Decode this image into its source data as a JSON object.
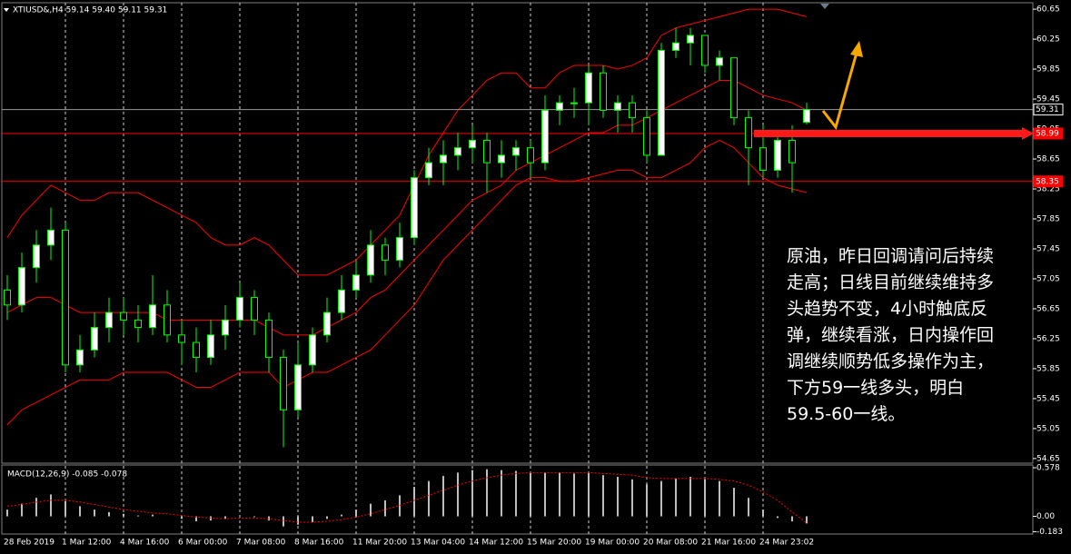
{
  "chart_data": [
    {
      "type": "candlestick",
      "title": "XTIUSD&,H4 59.14 59.40 59.11 59.31",
      "categories": [
        "28 Feb 2019",
        null,
        null,
        null,
        "1 Mar 12:00",
        null,
        null,
        null,
        "4 Mar 16:00",
        null,
        null,
        null,
        "6 Mar 00:00",
        null,
        null,
        null,
        "7 Mar 08:00",
        null,
        null,
        null,
        "8 Mar 16:00",
        null,
        null,
        null,
        "11 Mar 20:00",
        null,
        null,
        null,
        "13 Mar 04:00",
        null,
        null,
        null,
        "14 Mar 12:00",
        null,
        null,
        null,
        "15 Mar 20:00",
        null,
        null,
        null,
        "19 Mar 00:00",
        null,
        null,
        null,
        "20 Mar 08:00",
        null,
        null,
        null,
        "21 Mar 16:00",
        null,
        null,
        null,
        "24 Mar 23:02",
        null,
        null,
        null
      ],
      "open": [
        56.9,
        56.7,
        57.2,
        57.5,
        57.7,
        55.9,
        56.1,
        56.4,
        56.6,
        56.5,
        56.4,
        56.7,
        56.3,
        56.2,
        56.0,
        56.3,
        56.5,
        56.8,
        56.5,
        56.0,
        55.3,
        55.9,
        56.3,
        56.6,
        56.9,
        57.1,
        57.5,
        57.3,
        57.6,
        58.4,
        58.6,
        58.7,
        58.8,
        58.9,
        58.6,
        58.7,
        58.8,
        58.6,
        59.3,
        59.4,
        59.4,
        59.8,
        59.3,
        59.4,
        59.2,
        58.7,
        60.1,
        60.2,
        60.3,
        59.9,
        60.0,
        59.2,
        58.8,
        58.5,
        58.9,
        59.14
      ],
      "high": [
        57.1,
        57.4,
        57.7,
        58.0,
        57.8,
        56.3,
        56.6,
        56.8,
        56.8,
        56.7,
        57.1,
        56.9,
        56.5,
        56.4,
        56.5,
        56.7,
        57.0,
        56.9,
        56.6,
        56.1,
        56.2,
        56.4,
        56.8,
        57.1,
        57.3,
        57.7,
        57.6,
        57.8,
        58.5,
        58.8,
        58.9,
        59.0,
        59.1,
        59.0,
        58.9,
        58.9,
        58.9,
        59.5,
        59.5,
        59.6,
        59.9,
        59.9,
        59.5,
        59.5,
        59.3,
        60.2,
        60.4,
        60.4,
        60.3,
        60.1,
        60.0,
        59.3,
        59.1,
        59.0,
        59.1,
        59.4
      ],
      "low": [
        56.5,
        56.6,
        57.0,
        57.3,
        55.8,
        55.8,
        56.0,
        56.2,
        56.3,
        56.2,
        56.3,
        56.2,
        55.9,
        55.8,
        55.9,
        56.1,
        56.4,
        56.3,
        55.8,
        54.8,
        55.2,
        55.8,
        56.2,
        56.5,
        56.8,
        57.0,
        57.1,
        57.2,
        57.5,
        58.3,
        58.3,
        58.5,
        58.6,
        58.2,
        58.4,
        58.5,
        58.4,
        58.5,
        59.1,
        59.2,
        59.1,
        59.2,
        59.0,
        59.0,
        58.6,
        58.7,
        60.0,
        59.9,
        59.8,
        59.7,
        59.1,
        58.3,
        58.4,
        58.4,
        58.2,
        59.11
      ],
      "close": [
        56.7,
        57.2,
        57.5,
        57.7,
        55.9,
        56.1,
        56.4,
        56.6,
        56.5,
        56.4,
        56.7,
        56.3,
        56.2,
        56.0,
        56.3,
        56.5,
        56.8,
        56.5,
        56.0,
        55.3,
        55.9,
        56.3,
        56.6,
        56.9,
        57.1,
        57.5,
        57.3,
        57.6,
        58.4,
        58.6,
        58.7,
        58.8,
        58.9,
        58.6,
        58.7,
        58.8,
        58.6,
        59.3,
        59.4,
        59.4,
        59.8,
        59.3,
        59.4,
        59.2,
        58.7,
        60.1,
        60.2,
        60.3,
        59.9,
        60.0,
        59.2,
        58.8,
        58.5,
        58.9,
        58.6,
        59.31
      ],
      "up_color": "#ffffff",
      "down_color": "#000000",
      "wick_color": "#00ff00",
      "bands": {
        "color": "#ff0000",
        "upper": [
          57.6,
          57.9,
          58.1,
          58.3,
          58.2,
          58.1,
          58.1,
          58.2,
          58.2,
          58.2,
          58.1,
          58.0,
          57.9,
          57.8,
          57.6,
          57.5,
          57.5,
          57.6,
          57.5,
          57.3,
          57.1,
          57.1,
          57.1,
          57.2,
          57.3,
          57.5,
          57.7,
          57.9,
          58.3,
          58.7,
          59.0,
          59.3,
          59.5,
          59.7,
          59.8,
          59.8,
          59.6,
          59.6,
          59.8,
          59.9,
          59.9,
          59.9,
          59.85,
          59.9,
          60.0,
          60.3,
          60.4,
          60.45,
          60.5,
          60.55,
          60.6,
          60.65,
          60.65,
          60.65,
          60.6,
          60.55
        ],
        "middle": [
          56.6,
          56.7,
          56.8,
          56.8,
          56.7,
          56.6,
          56.6,
          56.6,
          56.6,
          56.6,
          56.6,
          56.5,
          56.5,
          56.5,
          56.5,
          56.5,
          56.5,
          56.5,
          56.4,
          56.3,
          56.3,
          56.3,
          56.4,
          56.5,
          56.6,
          56.8,
          56.9,
          57.1,
          57.3,
          57.5,
          57.7,
          57.9,
          58.1,
          58.2,
          58.3,
          58.5,
          58.6,
          58.7,
          58.8,
          58.9,
          59.0,
          59.0,
          59.1,
          59.1,
          59.2,
          59.3,
          59.4,
          59.5,
          59.6,
          59.7,
          59.7,
          59.6,
          59.5,
          59.45,
          59.4,
          59.3
        ],
        "lower": [
          55.1,
          55.3,
          55.4,
          55.5,
          55.6,
          55.7,
          55.7,
          55.7,
          55.8,
          55.8,
          55.8,
          55.8,
          55.7,
          55.6,
          55.6,
          55.7,
          55.8,
          55.8,
          55.8,
          55.6,
          55.7,
          55.8,
          55.8,
          55.9,
          56.0,
          56.1,
          56.3,
          56.5,
          56.7,
          57.0,
          57.3,
          57.5,
          57.7,
          57.9,
          58.1,
          58.3,
          58.4,
          58.4,
          58.35,
          58.35,
          58.4,
          58.45,
          58.5,
          58.5,
          58.4,
          58.4,
          58.5,
          58.6,
          58.8,
          58.9,
          58.8,
          58.6,
          58.4,
          58.3,
          58.25,
          58.2
        ]
      },
      "levels": [
        {
          "value": 58.99,
          "color": "#ff0000"
        },
        {
          "value": 58.35,
          "color": "#ff0000"
        },
        {
          "value": 59.31,
          "color": "#9a9a9a"
        }
      ],
      "ylim": [
        54.6,
        60.7
      ],
      "yticks": [
        60.65,
        60.25,
        59.85,
        59.45,
        59.05,
        58.65,
        58.25,
        57.85,
        57.45,
        57.05,
        56.65,
        56.25,
        55.85,
        55.45,
        55.05,
        54.65
      ],
      "annotation": "原油，昨日回调请问后持续走高；日线目前继续维持多头趋势不变，4小时触底反弹，继续看涨，日内操作回调继续顺势低多操作为主，下方59一线多头，明白59.5-60一线。"
    },
    {
      "type": "macd",
      "title": "MACD(12,26,9) -0.085 -0.078",
      "values": [
        0.08,
        0.15,
        0.22,
        0.26,
        0.18,
        0.12,
        0.08,
        0.05,
        0.03,
        0.01,
        0.02,
        0.0,
        -0.03,
        -0.06,
        -0.05,
        -0.03,
        0.0,
        -0.01,
        -0.05,
        -0.12,
        -0.1,
        -0.07,
        -0.03,
        0.02,
        0.08,
        0.15,
        0.19,
        0.25,
        0.35,
        0.42,
        0.48,
        0.52,
        0.55,
        0.56,
        0.55,
        0.54,
        0.52,
        0.52,
        0.52,
        0.51,
        0.52,
        0.49,
        0.47,
        0.44,
        0.38,
        0.42,
        0.45,
        0.47,
        0.44,
        0.42,
        0.34,
        0.22,
        0.08,
        -0.02,
        -0.06,
        -0.085
      ],
      "signal": [
        0.12,
        0.14,
        0.17,
        0.19,
        0.19,
        0.17,
        0.14,
        0.11,
        0.08,
        0.06,
        0.04,
        0.03,
        0.01,
        -0.01,
        -0.02,
        -0.03,
        -0.02,
        -0.02,
        -0.03,
        -0.05,
        -0.07,
        -0.07,
        -0.06,
        -0.04,
        -0.01,
        0.03,
        0.08,
        0.13,
        0.19,
        0.25,
        0.31,
        0.37,
        0.42,
        0.46,
        0.49,
        0.51,
        0.52,
        0.52,
        0.52,
        0.52,
        0.52,
        0.51,
        0.5,
        0.49,
        0.46,
        0.45,
        0.45,
        0.45,
        0.45,
        0.44,
        0.42,
        0.37,
        0.29,
        0.19,
        0.05,
        -0.078
      ],
      "color": "#ffffff",
      "signal_color": "#ff0000",
      "ylim": [
        -0.2,
        0.6
      ],
      "yticks": [
        0.578,
        {
          "value": 0,
          "label": "0.00"
        },
        -0.183
      ]
    }
  ]
}
